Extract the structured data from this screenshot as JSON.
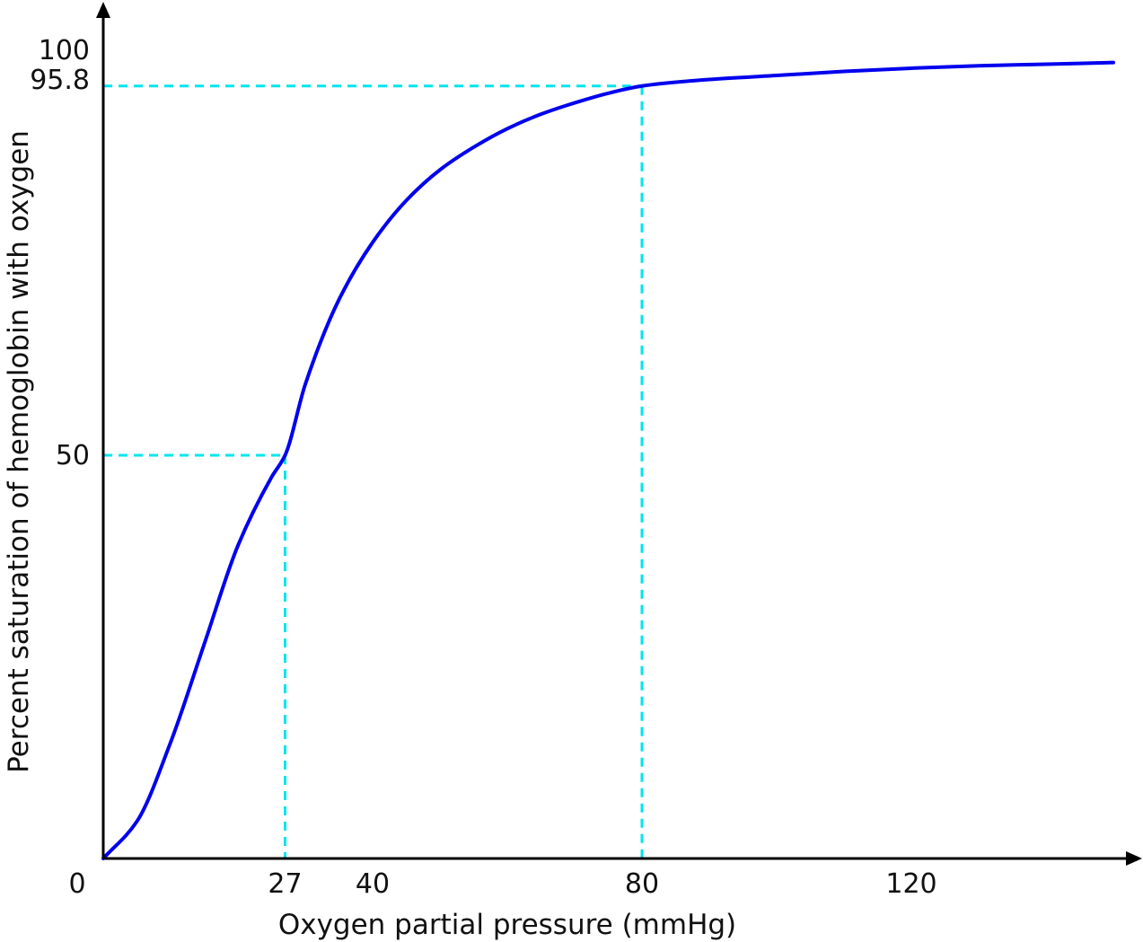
{
  "chart_data": {
    "type": "line",
    "title": "",
    "xlabel": "Oxygen partial pressure (mmHg)",
    "ylabel": "Percent saturation of hemoglobin with oxygen",
    "xlim": [
      0,
      150
    ],
    "ylim": [
      0,
      100
    ],
    "x_ticks": [
      {
        "value": 0,
        "label": "0"
      },
      {
        "value": 27,
        "label": "27"
      },
      {
        "value": 40,
        "label": "40"
      },
      {
        "value": 80,
        "label": "80"
      },
      {
        "value": 120,
        "label": "120"
      }
    ],
    "y_ticks": [
      {
        "value": 50,
        "label": "50"
      },
      {
        "value": 95.8,
        "label": "95.8"
      },
      {
        "value": 100,
        "label": "100"
      }
    ],
    "series": [
      {
        "color": "#0000ee",
        "x": [
          0,
          5,
          10,
          15,
          20,
          25,
          27,
          30,
          35,
          40,
          45,
          50,
          55,
          60,
          65,
          70,
          75,
          80,
          90,
          100,
          110,
          120,
          130,
          140,
          150
        ],
        "y": [
          0,
          4.6,
          14.4,
          26.6,
          38.8,
          47.3,
          50.0,
          58.8,
          69.3,
          76.4,
          81.6,
          85.4,
          88.2,
          90.5,
          92.3,
          93.7,
          94.9,
          95.8,
          96.6,
          97.1,
          97.6,
          98.0,
          98.3,
          98.5,
          98.7
        ]
      }
    ],
    "reference_lines": [
      {
        "x": 27,
        "y": 50,
        "color": "#00e5ee"
      },
      {
        "x": 80,
        "y": 95.8,
        "color": "#00e5ee"
      }
    ],
    "grid": false,
    "legend": "none"
  }
}
